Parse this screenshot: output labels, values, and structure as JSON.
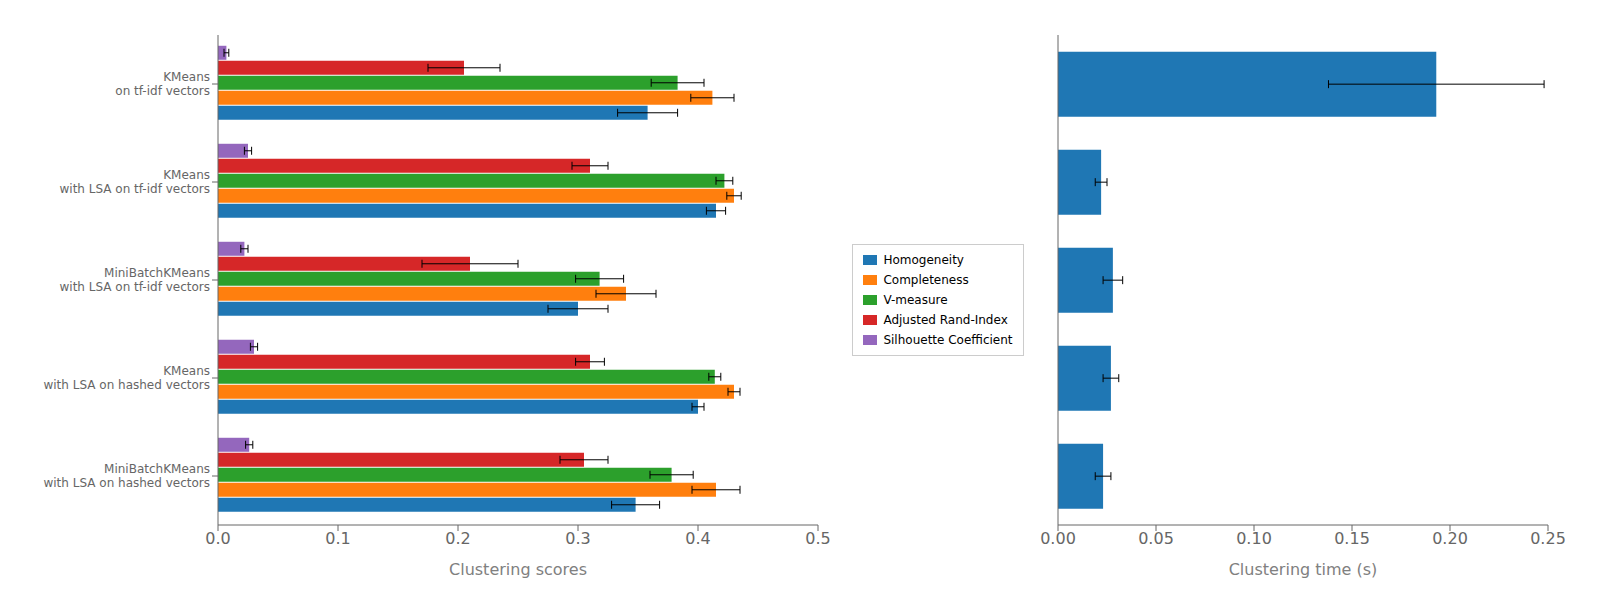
{
  "chart_data": [
    {
      "type": "bar",
      "orientation": "horizontal",
      "categories": [
        "KMeans\non tf-idf vectors",
        "KMeans\nwith LSA on tf-idf vectors",
        "MiniBatchKMeans\nwith LSA on tf-idf vectors",
        "KMeans\nwith LSA on hashed vectors",
        "MiniBatchKMeans\nwith LSA on hashed vectors"
      ],
      "series": [
        {
          "name": "Homogeneity",
          "color": "#1f77b4",
          "values": [
            0.358,
            0.415,
            0.3,
            0.4,
            0.348
          ],
          "errors": [
            0.025,
            0.008,
            0.025,
            0.005,
            0.02
          ]
        },
        {
          "name": "Completeness",
          "color": "#ff7f0e",
          "values": [
            0.412,
            0.43,
            0.34,
            0.43,
            0.415
          ],
          "errors": [
            0.018,
            0.006,
            0.025,
            0.005,
            0.02
          ]
        },
        {
          "name": "V-measure",
          "color": "#2ca02c",
          "values": [
            0.383,
            0.422,
            0.318,
            0.414,
            0.378
          ],
          "errors": [
            0.022,
            0.007,
            0.02,
            0.005,
            0.018
          ]
        },
        {
          "name": "Adjusted Rand-Index",
          "color": "#d62728",
          "values": [
            0.205,
            0.31,
            0.21,
            0.31,
            0.305
          ],
          "errors": [
            0.03,
            0.015,
            0.04,
            0.012,
            0.02
          ]
        },
        {
          "name": "Silhouette Coefficient",
          "color": "#9467bd",
          "values": [
            0.007,
            0.025,
            0.022,
            0.03,
            0.026
          ],
          "errors": [
            0.002,
            0.003,
            0.003,
            0.003,
            0.003
          ]
        }
      ],
      "xlabel": "Clustering scores",
      "xlim": [
        0,
        0.5
      ],
      "xticks": [
        {
          "value": 0,
          "label": "0.0"
        },
        0.1,
        0.2,
        0.3,
        0.4,
        0.5
      ],
      "legend": "right",
      "grid": false
    },
    {
      "type": "bar",
      "orientation": "horizontal",
      "values": [
        0.193,
        0.022,
        0.028,
        0.027,
        0.023
      ],
      "errors": [
        0.055,
        0.003,
        0.005,
        0.004,
        0.004
      ],
      "color": "#1f77b4",
      "xlabel": "Clustering time (s)",
      "xlim": [
        0,
        0.25
      ],
      "xticks": [
        {
          "value": 0,
          "label": "0.00"
        },
        0.05,
        {
          "value": 0.1,
          "label": "0.10"
        },
        0.15,
        {
          "value": 0.2,
          "label": "0.20"
        },
        0.25
      ],
      "tick_labels": "x",
      "grid": false
    }
  ]
}
